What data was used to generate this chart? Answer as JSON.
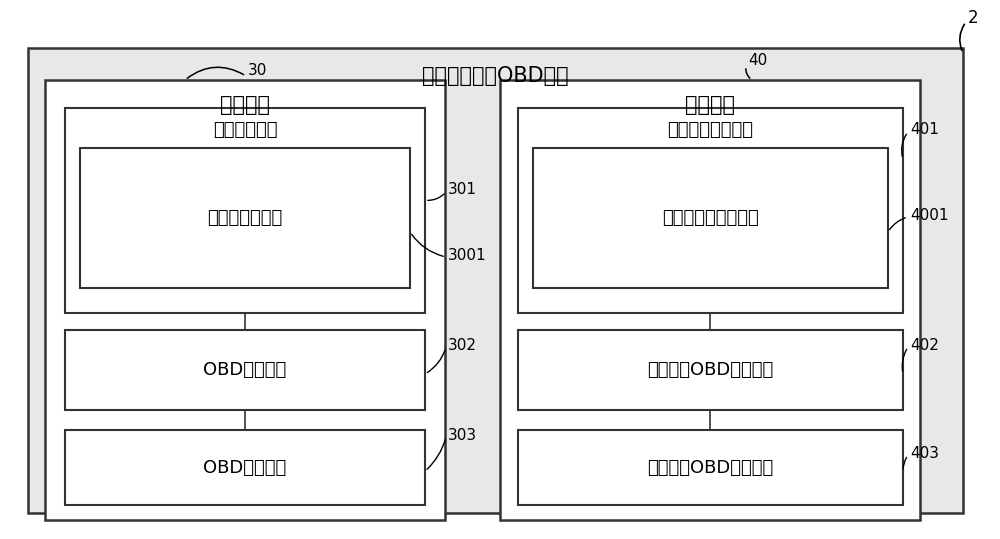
{
  "fig_bg": "#ffffff",
  "outer_bg": "#e8e8e8",
  "box_bg": "#ffffff",
  "ec": "#333333",
  "title_system": "云端车载诊断OBD系统",
  "label_2": "2",
  "label_30": "30",
  "label_40": "40",
  "label_301": "301",
  "label_3001": "3001",
  "label_302": "302",
  "label_303": "303",
  "label_401": "401",
  "label_4001": "4001",
  "label_402": "402",
  "label_403": "403",
  "left_title": "车载终端",
  "right_title": "移动终端",
  "left_modules": [
    "车载关联模块",
    "车载蓝牙子模块",
    "OBD获取模块",
    "OBD发送模块"
  ],
  "right_modules": [
    "移动终端关联模块",
    "移动终端蓝牙子模块",
    "移动终端OBD接收模块",
    "移动终端OBD展现模块"
  ],
  "fs_title": 15,
  "fs_module": 13,
  "fs_label": 11,
  "lw_outer": 1.8,
  "lw_inner": 1.5
}
